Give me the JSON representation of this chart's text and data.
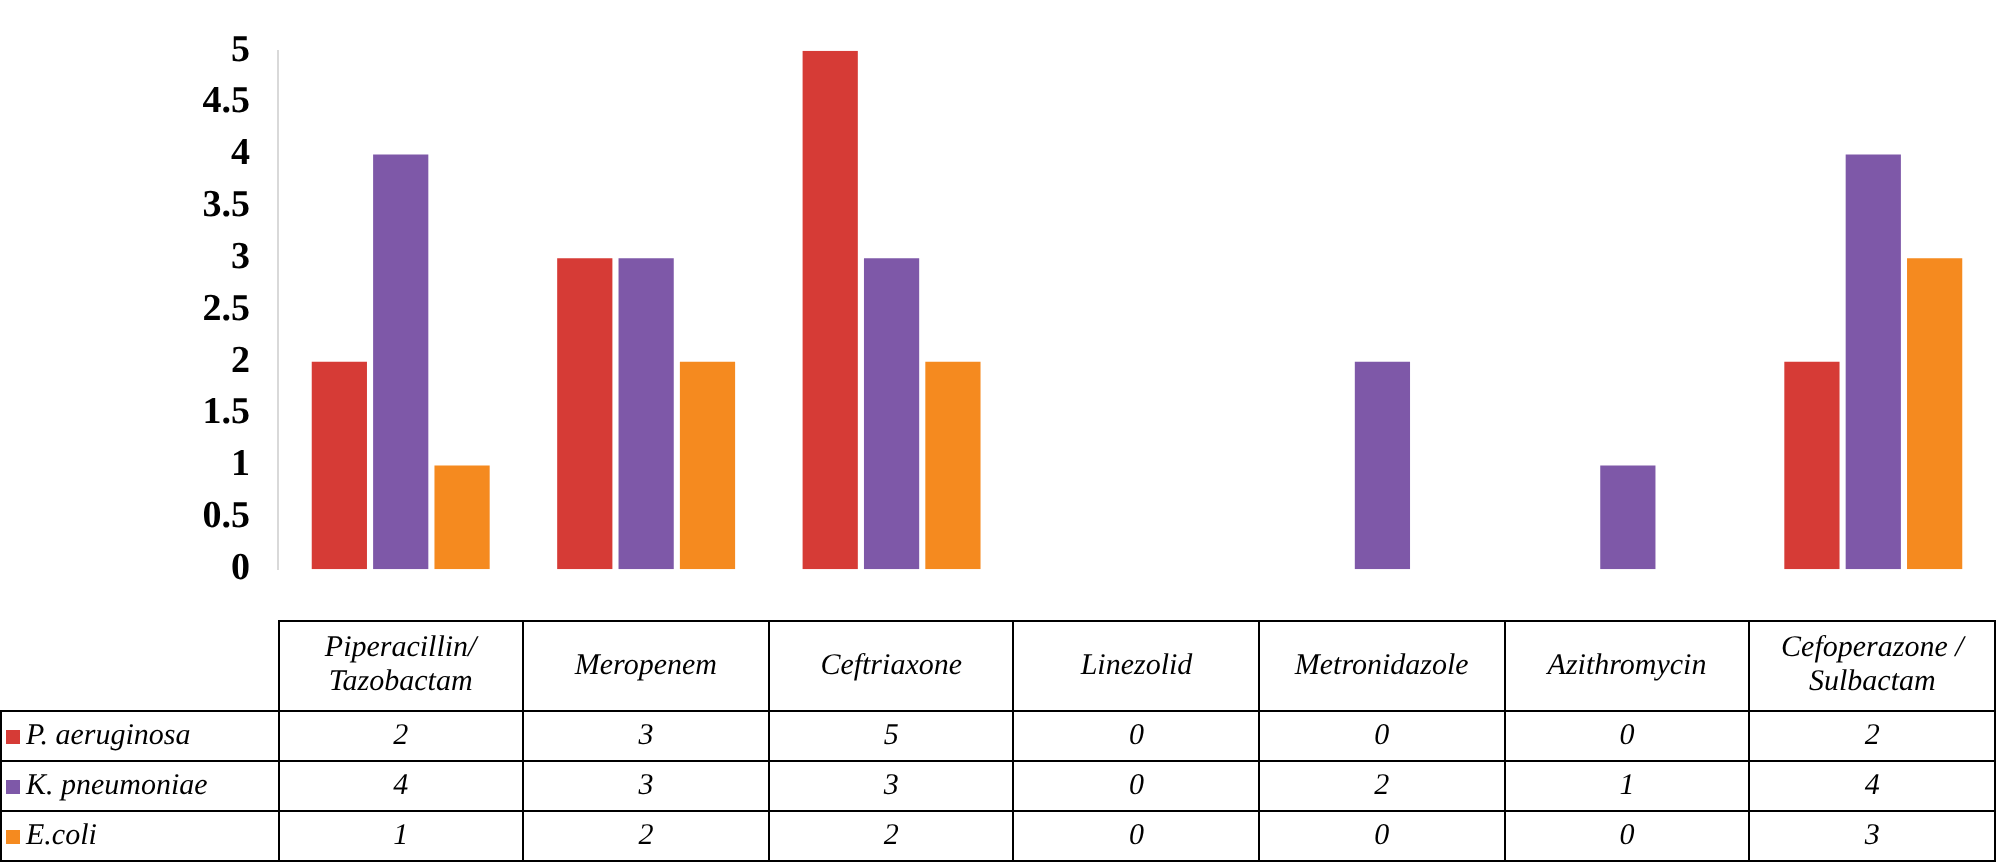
{
  "chart_data": {
    "type": "bar",
    "categories": [
      "Piperacillin/ Tazobactam",
      "Meropenem",
      "Ceftriaxone",
      "Linezolid",
      "Metronidazole",
      "Azithromycin",
      "Cefoperazone / Sulbactam"
    ],
    "series": [
      {
        "name": "P. aeruginosa",
        "color": "#d63b36",
        "values": [
          2,
          3,
          5,
          0,
          0,
          0,
          2
        ]
      },
      {
        "name": "K. pneumoniae",
        "color": "#7e58a8",
        "values": [
          4,
          3,
          3,
          0,
          2,
          1,
          4
        ]
      },
      {
        "name": "E.coli",
        "color": "#f58a1f",
        "values": [
          1,
          2,
          2,
          0,
          0,
          0,
          3
        ]
      }
    ],
    "ylim": [
      0,
      5
    ],
    "yticks": [
      0,
      0.5,
      1,
      1.5,
      2,
      2.5,
      3,
      3.5,
      4,
      4.5,
      5
    ],
    "grid": false,
    "legend": "bottom",
    "data_labels": true
  }
}
